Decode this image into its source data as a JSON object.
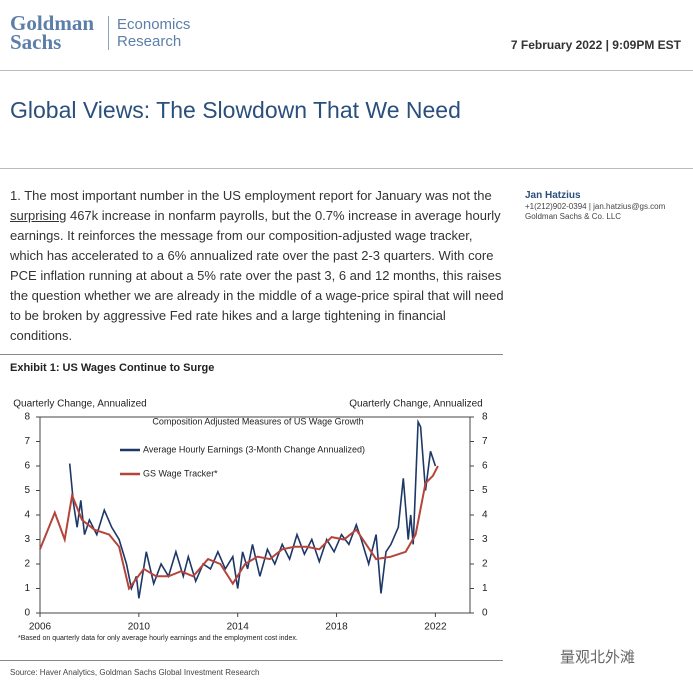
{
  "header": {
    "brand_line1": "Goldman",
    "brand_line2": "Sachs",
    "unit_line1": "Economics",
    "unit_line2": "Research",
    "date": "7 February 2022 | 9:09PM EST"
  },
  "title": "Global Views: The Slowdown That We Need",
  "body": {
    "before": "1. The most important number in the US employment report for January was not the ",
    "underlined": "surprising",
    "after": " 467k increase in nonfarm payrolls, but the 0.7% increase in average hourly earnings.  It reinforces the message from our composition-adjusted wage tracker, which has accelerated to a 6% annualized rate over the past 2-3 quarters. With core PCE inflation running at about a 5% rate over the past 3, 6 and 12 months, this raises the question whether we are already in the middle of a wage-price spiral that will need to be broken by aggressive Fed rate hikes and a large tightening in financial conditions."
  },
  "author": {
    "name": "Jan Hatzius",
    "contact": "+1(212)902-0394 | jan.hatzius@gs.com",
    "firm": "Goldman Sachs & Co. LLC"
  },
  "exhibit_title": "Exhibit 1: US Wages Continue to Surge",
  "chart_data": {
    "type": "line",
    "title": "Composition Adjusted Measures of US Wage Growth",
    "ylabel": "Quarterly Change, Annualized",
    "y2label": "Quarterly Change, Annualized",
    "xlim": [
      2006,
      2023.4
    ],
    "xticks": [
      2006,
      2010,
      2014,
      2018,
      2022
    ],
    "ylim": [
      0,
      8
    ],
    "yticks": [
      0,
      1,
      2,
      3,
      4,
      5,
      6,
      7,
      8
    ],
    "y2lim": [
      0,
      8
    ],
    "y2ticks": [
      0,
      1,
      2,
      3,
      4,
      5,
      6,
      7,
      8
    ],
    "series": [
      {
        "name": "Average Hourly Earnings (3-Month Change Annualized)",
        "color": "#1d3766",
        "x": [
          2007.2,
          2007.35,
          2007.5,
          2007.65,
          2007.8,
          2008.0,
          2008.3,
          2008.6,
          2008.9,
          2009.2,
          2009.5,
          2009.7,
          2009.9,
          2010.0,
          2010.3,
          2010.6,
          2010.9,
          2011.2,
          2011.5,
          2011.8,
          2012.0,
          2012.3,
          2012.6,
          2012.9,
          2013.2,
          2013.5,
          2013.8,
          2014.0,
          2014.2,
          2014.4,
          2014.6,
          2014.9,
          2015.2,
          2015.5,
          2015.8,
          2016.1,
          2016.4,
          2016.7,
          2017.0,
          2017.3,
          2017.6,
          2017.9,
          2018.2,
          2018.5,
          2018.8,
          2019.0,
          2019.3,
          2019.6,
          2019.8,
          2020.0,
          2020.2,
          2020.5,
          2020.7,
          2020.9,
          2021.0,
          2021.1,
          2021.3,
          2021.4,
          2021.6,
          2021.8,
          2022.0
        ],
        "values": [
          6.1,
          4.5,
          3.5,
          4.6,
          3.2,
          3.8,
          3.2,
          4.2,
          3.5,
          3.0,
          2.0,
          1.0,
          1.5,
          0.6,
          2.5,
          1.2,
          2.0,
          1.5,
          2.5,
          1.5,
          2.3,
          1.3,
          2.0,
          1.8,
          2.5,
          1.8,
          2.3,
          1.0,
          2.5,
          1.8,
          2.8,
          1.5,
          2.6,
          2.0,
          2.8,
          2.2,
          3.2,
          2.4,
          3.0,
          2.1,
          3.0,
          2.5,
          3.2,
          2.8,
          3.6,
          3.0,
          2.0,
          3.2,
          0.8,
          2.5,
          2.8,
          3.5,
          5.5,
          3.0,
          4.0,
          2.8,
          7.8,
          7.6,
          5.0,
          6.6,
          6.0
        ]
      },
      {
        "name": "GS Wage Tracker*",
        "color": "#b5453b",
        "x": [
          2006.0,
          2006.6,
          2007.0,
          2007.3,
          2007.7,
          2008.2,
          2008.8,
          2009.2,
          2009.6,
          2010.2,
          2010.7,
          2011.2,
          2011.7,
          2012.2,
          2012.8,
          2013.3,
          2013.8,
          2014.3,
          2014.8,
          2015.3,
          2015.8,
          2016.3,
          2016.8,
          2017.3,
          2017.8,
          2018.3,
          2018.8,
          2019.2,
          2019.6,
          2020.2,
          2020.8,
          2021.2,
          2021.6,
          2021.9,
          2022.1
        ],
        "values": [
          2.6,
          4.1,
          3.0,
          4.8,
          3.8,
          3.4,
          3.2,
          2.7,
          1.0,
          1.8,
          1.5,
          1.5,
          1.7,
          1.5,
          2.2,
          2.0,
          1.2,
          2.0,
          2.3,
          2.2,
          2.6,
          2.7,
          2.7,
          2.6,
          3.1,
          3.0,
          3.4,
          2.8,
          2.2,
          2.3,
          2.5,
          3.2,
          5.3,
          5.6,
          6.0
        ]
      }
    ],
    "footnote": "*Based on quarterly data for only average hourly earnings and the employment cost index."
  },
  "source": "Source: Haver Analytics, Goldman Sachs Global Investment Research",
  "watermark": "量观北外滩"
}
